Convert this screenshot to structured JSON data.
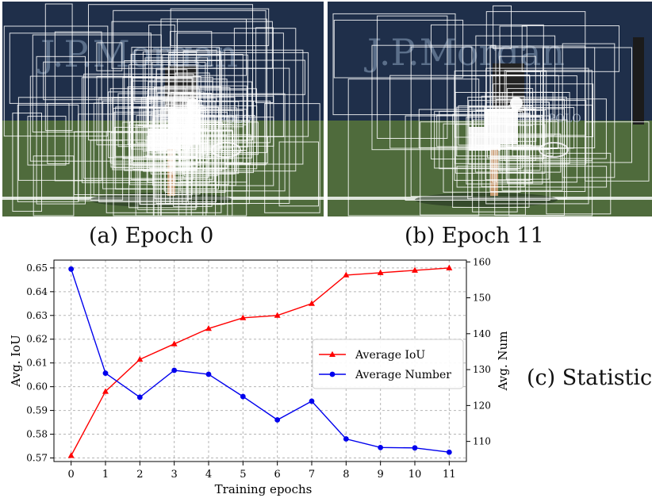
{
  "photos": [
    {
      "caption": "(a) Epoch 0",
      "banner_text": "J.P.Morgan",
      "logo_text": "POLO",
      "box_color": "#ffffff"
    },
    {
      "caption": "(b) Epoch 11",
      "banner_text": "J.P.Morgan",
      "logo_text": "POLO",
      "box_color": "#ffffff"
    }
  ],
  "colors": {
    "wall": "#1f2f4a",
    "court": "#4f6b3c",
    "line": "#dfe5dd",
    "iou": "#ff0000",
    "num": "#0000ee"
  },
  "chart_caption": "(c) Statistic",
  "chart_data": {
    "type": "line",
    "xlabel": "Training epochs",
    "ylabel_left": "Avg. IoU",
    "ylabel_right": "Avg. Num",
    "x": [
      0,
      1,
      2,
      3,
      4,
      5,
      6,
      7,
      8,
      9,
      10,
      11
    ],
    "x_ticks": [
      "0",
      "1",
      "2",
      "3",
      "4",
      "5",
      "6",
      "7",
      "8",
      "9",
      "10",
      "11"
    ],
    "y_left_ticks": [
      "0.57",
      "0.58",
      "0.59",
      "0.60",
      "0.61",
      "0.62",
      "0.63",
      "0.64",
      "0.65"
    ],
    "y_right_ticks": [
      "110",
      "120",
      "130",
      "140",
      "150",
      "160"
    ],
    "ylim_left": [
      0.5685,
      0.6533
    ],
    "ylim_right": [
      104.4,
      160.5
    ],
    "grid": true,
    "legend_position": "center-right",
    "series": [
      {
        "name": "Average IoU",
        "axis": "left",
        "marker": "triangle",
        "color": "#ff0000",
        "values": [
          0.571,
          0.598,
          0.6115,
          0.618,
          0.6245,
          0.629,
          0.63,
          0.635,
          0.647,
          0.648,
          0.649,
          0.65
        ]
      },
      {
        "name": "Average Number",
        "axis": "right",
        "marker": "circle",
        "color": "#0000ee",
        "values": [
          158.0,
          129.0,
          122.3,
          129.8,
          128.7,
          122.5,
          116.0,
          121.2,
          110.7,
          108.3,
          108.2,
          107.0
        ]
      }
    ]
  }
}
